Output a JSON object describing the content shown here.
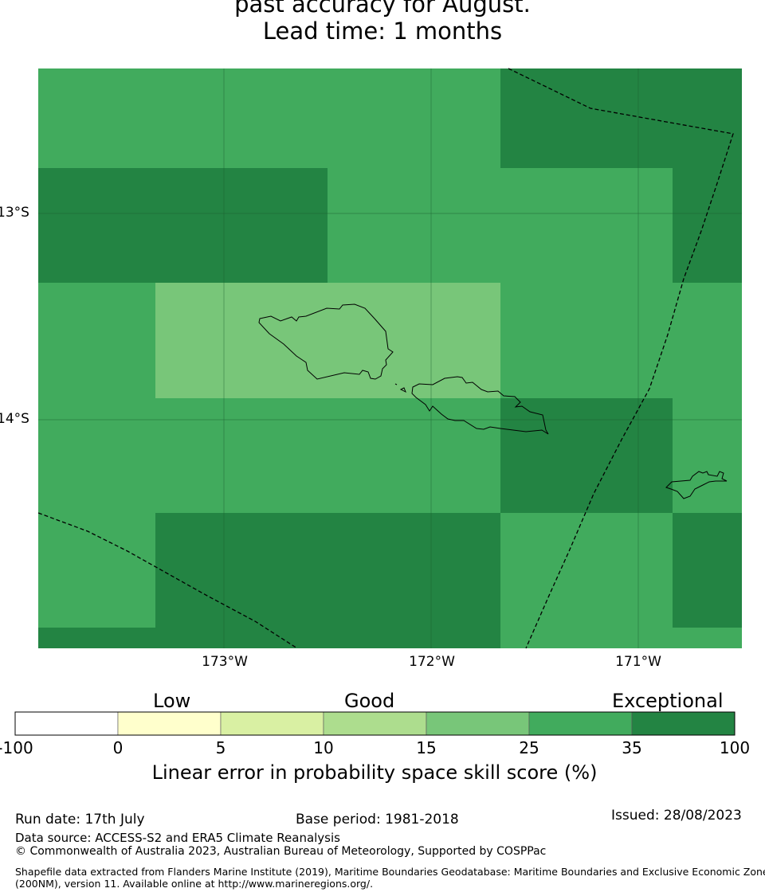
{
  "title": {
    "line2": "past accuracy for August.",
    "line3": "Lead time: 1 months"
  },
  "map": {
    "x_ticks": [
      "173°W",
      "172°W",
      "171°W"
    ],
    "y_ticks": [
      "13°S",
      "14°S"
    ],
    "colors": {
      "cat_25_35": "#41ab5d",
      "cat_35_100": "#238443",
      "cat_15_25": "#78c679",
      "coastline": "#000000",
      "boundary": "#000000",
      "grid": "#1a5c2e"
    },
    "region_skill_categories": [
      {
        "area": "north-west",
        "category": "25-35"
      },
      {
        "area": "north-west band",
        "category": "35-100"
      },
      {
        "area": "central (Savai'i)",
        "category": "15-25"
      },
      {
        "area": "north-east",
        "category": "35-100"
      },
      {
        "area": "east of Upolu",
        "category": "35-100"
      },
      {
        "area": "south",
        "category": "35-100"
      }
    ]
  },
  "colorbar": {
    "category_labels": {
      "low": "Low",
      "good": "Good",
      "exceptional": "Exceptional"
    },
    "ticks": [
      "-100",
      "0",
      "5",
      "10",
      "15",
      "25",
      "35",
      "100"
    ],
    "colors": [
      "#ffffff",
      "#ffffcc",
      "#d9f0a3",
      "#addd8e",
      "#78c679",
      "#41ab5d",
      "#238443"
    ],
    "label": "Linear error in probability space skill score (%)"
  },
  "footer": {
    "run_date": "Run date: 17th July",
    "base_period": "Base period: 1981-2018",
    "issued": "Issued: 28/08/2023",
    "data_source": "Data source: ACCESS-S2 and ERA5 Climate Reanalysis",
    "copyright": "© Commonwealth of Australia 2023, Australian Bureau of Meteorology, Supported by COSPPac",
    "shapefile_line1": "Shapefile data extracted from Flanders Marine Institute (2019), Maritime Boundaries Geodatabase: Maritime Boundaries and Exclusive Economic Zones",
    "shapefile_line2": "(200NM), version 11. Available online at http://www.marineregions.org/."
  }
}
